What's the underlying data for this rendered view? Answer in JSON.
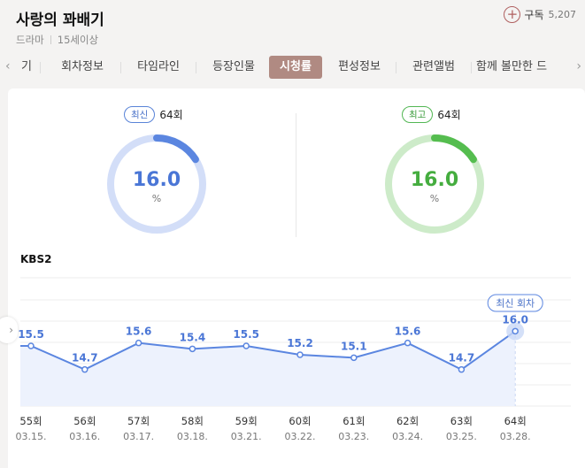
{
  "program": {
    "title": "사랑의 꽈배기",
    "genre": "드라마",
    "age_rating": "15세이상"
  },
  "subscribe": {
    "icon": "plus-icon",
    "label": "구독",
    "count": "5,207"
  },
  "tabs": {
    "left_arrow": "‹",
    "right_arrow": "›",
    "items": [
      {
        "label": "기"
      },
      {
        "label": "회차정보"
      },
      {
        "label": "타임라인"
      },
      {
        "label": "등장인물"
      },
      {
        "label": "시청률"
      },
      {
        "label": "편성정보"
      },
      {
        "label": "관련앨범"
      },
      {
        "label": "함께 볼만한 드"
      }
    ],
    "active_index": 4
  },
  "ratings": {
    "latest": {
      "badge": "최신",
      "episode": "64회",
      "value": "16.0",
      "unit": "%",
      "fraction": 0.16,
      "color": "#5b86e0",
      "track": "#d3def8"
    },
    "highest": {
      "badge": "최고",
      "episode": "64회",
      "value": "16.0",
      "unit": "%",
      "fraction": 0.16,
      "color": "#55bd4f",
      "track": "#cdebc9"
    }
  },
  "station": "KBS2",
  "chart_data": {
    "type": "area",
    "series": [
      {
        "values": [
          15.5,
          14.7,
          15.6,
          15.4,
          15.5,
          15.2,
          15.1,
          15.6,
          14.7,
          16.0
        ]
      }
    ],
    "categories": [
      "55회",
      "56회",
      "57회",
      "58회",
      "59회",
      "60회",
      "61회",
      "62회",
      "63회",
      "64회"
    ],
    "dates": [
      "03.15.",
      "03.16.",
      "03.17.",
      "03.18.",
      "03.21.",
      "03.22.",
      "03.23.",
      "03.24.",
      "03.25.",
      "03.28."
    ],
    "latest_callout": "최신 회차",
    "line_color": "#5b86e0",
    "fill_color": "#edf2fd",
    "grid": true
  },
  "side_arrow": "›"
}
